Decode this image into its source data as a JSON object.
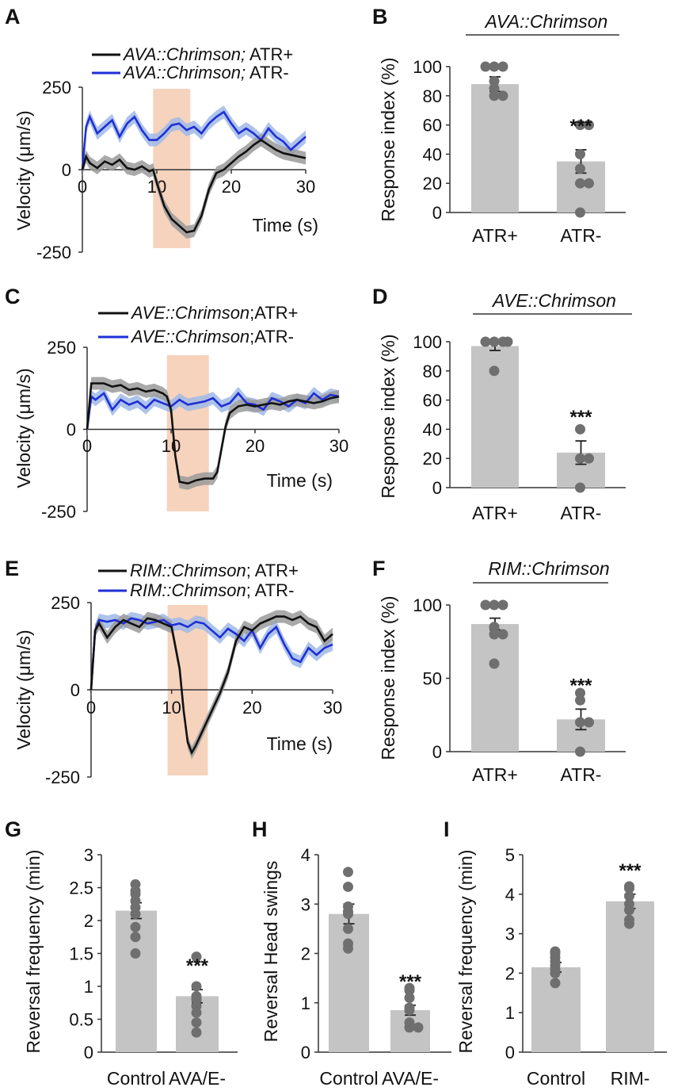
{
  "panel_labels": [
    "A",
    "B",
    "C",
    "D",
    "E",
    "F",
    "G",
    "H",
    "I"
  ],
  "colors": {
    "atr_plus": "#111111",
    "atr_plus_band": "#9a9a9a",
    "atr_minus": "#1f2fd6",
    "atr_minus_band": "#9fb8e6",
    "stim": "#f6d3bd",
    "bar": "#c4c4c4",
    "dot": "#6f6f6f"
  },
  "chart_data": [
    {
      "id": "A",
      "type": "line",
      "xlabel": "Time (s)",
      "ylabel": "Velocity (μm/s)",
      "xlim": [
        0,
        30
      ],
      "ylim": [
        -250,
        250
      ],
      "xticks": [
        "0",
        "10",
        "20",
        "30"
      ],
      "yticks": [
        "250",
        "0",
        "-250"
      ],
      "stim_window": [
        9.5,
        14.5
      ],
      "legend": [
        {
          "gene": "AVA::Chrimson;",
          "cond": " ATR+"
        },
        {
          "gene": "AVA::Chrimson;",
          "cond": " ATR-"
        }
      ],
      "series": [
        {
          "name": "ATR+",
          "x": [
            0,
            0.5,
            1,
            2,
            3,
            4,
            5,
            6,
            7,
            8,
            9,
            9.5,
            10,
            11,
            12,
            13,
            14,
            15,
            16,
            17,
            18,
            19,
            20,
            21,
            22,
            23,
            24,
            25,
            26,
            27,
            28,
            29,
            30
          ],
          "y": [
            0,
            40,
            20,
            5,
            25,
            15,
            30,
            5,
            0,
            10,
            -5,
            0,
            -40,
            -110,
            -150,
            -170,
            -190,
            -185,
            -140,
            -60,
            -10,
            0,
            20,
            40,
            55,
            75,
            90,
            75,
            60,
            50,
            45,
            40,
            35
          ]
        },
        {
          "name": "ATR-",
          "x": [
            0,
            0.5,
            1,
            2,
            3,
            4,
            5,
            6,
            7,
            8,
            9,
            10,
            11,
            12,
            13,
            14,
            15,
            16,
            17,
            18,
            19,
            20,
            21,
            22,
            23,
            24,
            25,
            26,
            27,
            28,
            29,
            30
          ],
          "y": [
            0,
            130,
            160,
            110,
            130,
            150,
            100,
            140,
            160,
            120,
            90,
            90,
            110,
            135,
            140,
            120,
            130,
            110,
            140,
            160,
            175,
            140,
            110,
            125,
            110,
            90,
            125,
            100,
            85,
            60,
            80,
            100
          ]
        }
      ]
    },
    {
      "id": "B",
      "type": "bar",
      "title": "AVA::Chrimson",
      "ylabel": "Response index (%)",
      "ylim": [
        0,
        100
      ],
      "yticks": [
        "0",
        "20",
        "40",
        "60",
        "80",
        "100"
      ],
      "categories": [
        "ATR+",
        "ATR-"
      ],
      "values": [
        88,
        35
      ],
      "errors": [
        5,
        8
      ],
      "points": [
        [
          100,
          100,
          100,
          90,
          80,
          80,
          85
        ],
        [
          60,
          60,
          40,
          30,
          20,
          20,
          0
        ]
      ],
      "significance": [
        null,
        "***"
      ]
    },
    {
      "id": "C",
      "type": "line",
      "xlabel": "Time (s)",
      "ylabel": "Velocity (μm/s)",
      "xlim": [
        0,
        30
      ],
      "ylim": [
        -250,
        250
      ],
      "xticks": [
        "0",
        "10",
        "20",
        "30"
      ],
      "yticks": [
        "250",
        "0",
        "-250"
      ],
      "stim_window": [
        9.5,
        14.5
      ],
      "legend": [
        {
          "gene": "AVE::Chrimson",
          "cond": ";ATR+"
        },
        {
          "gene": "AVE::Chrimson",
          "cond": ";ATR-"
        }
      ],
      "series": [
        {
          "name": "ATR+",
          "x": [
            0,
            0.5,
            1,
            2,
            3,
            4,
            5,
            6,
            7,
            8,
            9,
            9.5,
            10,
            10.5,
            11,
            12,
            13,
            14,
            15,
            15.5,
            16,
            16.5,
            17,
            18,
            19,
            20,
            21,
            22,
            23,
            24,
            25,
            26,
            27,
            28,
            29,
            30
          ],
          "y": [
            0,
            140,
            140,
            140,
            130,
            135,
            120,
            125,
            115,
            120,
            110,
            100,
            60,
            -80,
            -160,
            -165,
            -155,
            -150,
            -150,
            -130,
            -60,
            10,
            50,
            70,
            75,
            70,
            75,
            80,
            75,
            85,
            90,
            85,
            80,
            85,
            95,
            100
          ]
        },
        {
          "name": "ATR-",
          "x": [
            0,
            0.5,
            1,
            2,
            3,
            4,
            5,
            6,
            7,
            8,
            9,
            10,
            11,
            12,
            13,
            14,
            15,
            16,
            17,
            18,
            19,
            20,
            21,
            22,
            23,
            24,
            25,
            26,
            27,
            28,
            29,
            30
          ],
          "y": [
            0,
            100,
            90,
            110,
            60,
            90,
            75,
            85,
            65,
            90,
            80,
            70,
            90,
            75,
            80,
            85,
            95,
            70,
            80,
            110,
            80,
            75,
            60,
            95,
            85,
            70,
            90,
            80,
            110,
            90,
            105,
            100
          ]
        }
      ]
    },
    {
      "id": "D",
      "type": "bar",
      "title": "AVE::Chrimson",
      "ylabel": "Response index (%)",
      "ylim": [
        0,
        100
      ],
      "yticks": [
        "0",
        "20",
        "40",
        "60",
        "80",
        "100"
      ],
      "categories": [
        "ATR+",
        "ATR-"
      ],
      "values": [
        97,
        24
      ],
      "errors": [
        3,
        8
      ],
      "points": [
        [
          100,
          100,
          100,
          100,
          80
        ],
        [
          40,
          20,
          20,
          0
        ]
      ],
      "significance": [
        null,
        "***"
      ]
    },
    {
      "id": "E",
      "type": "line",
      "xlabel": "Time (s)",
      "ylabel": "Velocity (μm/s)",
      "xlim": [
        0,
        30
      ],
      "ylim": [
        -250,
        250
      ],
      "xticks": [
        "0",
        "10",
        "20",
        "30"
      ],
      "yticks": [
        "250",
        "0",
        "-250"
      ],
      "stim_window": [
        9.5,
        14.5
      ],
      "legend": [
        {
          "gene": "RIM::Chrimson",
          "cond": "; ATR+"
        },
        {
          "gene": "RIM::Chrimson",
          "cond": "; ATR-"
        }
      ],
      "series": [
        {
          "name": "ATR+",
          "x": [
            0,
            0.5,
            1,
            2,
            3,
            4,
            5,
            6,
            7,
            8,
            9,
            10,
            11,
            11.5,
            12,
            12.5,
            13,
            14,
            15,
            16,
            17,
            18,
            19,
            20,
            21,
            22,
            23,
            24,
            25,
            26,
            27,
            28,
            29,
            30
          ],
          "y": [
            0,
            170,
            190,
            150,
            180,
            200,
            190,
            180,
            205,
            200,
            190,
            180,
            60,
            -60,
            -150,
            -180,
            -160,
            -110,
            -60,
            -10,
            50,
            140,
            180,
            170,
            190,
            200,
            210,
            210,
            200,
            210,
            190,
            180,
            140,
            160
          ]
        },
        {
          "name": "ATR-",
          "x": [
            0,
            0.5,
            1,
            2,
            3,
            4,
            5,
            6,
            7,
            8,
            9,
            10,
            11,
            12,
            13,
            14,
            15,
            16,
            17,
            18,
            19,
            20,
            21,
            22,
            23,
            24,
            25,
            26,
            27,
            28,
            29,
            30
          ],
          "y": [
            0,
            170,
            200,
            195,
            200,
            190,
            205,
            200,
            190,
            195,
            200,
            185,
            190,
            180,
            195,
            190,
            170,
            150,
            175,
            160,
            140,
            170,
            120,
            160,
            180,
            130,
            90,
            80,
            120,
            100,
            120,
            130
          ]
        }
      ]
    },
    {
      "id": "F",
      "type": "bar",
      "title": "RIM::Chrimson",
      "ylabel": "Response index (%)",
      "ylim": [
        0,
        100
      ],
      "yticks": [
        "0",
        "50",
        "100"
      ],
      "categories": [
        "ATR+",
        "ATR-"
      ],
      "values": [
        87,
        22
      ],
      "errors": [
        4,
        7
      ],
      "points": [
        [
          100,
          100,
          100,
          85,
          80,
          80,
          60
        ],
        [
          40,
          35,
          20,
          20,
          0
        ]
      ],
      "significance": [
        null,
        "***"
      ]
    },
    {
      "id": "G",
      "type": "bar",
      "ylabel": "Reversal frequency (min)",
      "ylim": [
        0,
        3
      ],
      "yticks": [
        "0",
        "0.5",
        "1",
        "1.5",
        "2",
        "2.5",
        "3"
      ],
      "categories": [
        "Control",
        "AVA/E-"
      ],
      "values": [
        2.15,
        0.85
      ],
      "errors": [
        0.12,
        0.1
      ],
      "points": [
        [
          2.55,
          2.45,
          2.4,
          2.3,
          2.2,
          2.1,
          1.9,
          1.75,
          1.5
        ],
        [
          1.45,
          1.0,
          0.85,
          0.8,
          0.7,
          0.6,
          0.45,
          0.3
        ]
      ],
      "significance": [
        null,
        "***"
      ]
    },
    {
      "id": "H",
      "type": "bar",
      "ylabel": "Reversal Head swings",
      "ylim": [
        0,
        4
      ],
      "yticks": [
        "0",
        "1",
        "2",
        "3",
        "4"
      ],
      "categories": [
        "Control",
        "AVA/E-"
      ],
      "values": [
        2.8,
        0.85
      ],
      "errors": [
        0.2,
        0.1
      ],
      "points": [
        [
          3.65,
          3.35,
          2.95,
          2.85,
          2.8,
          2.5,
          2.2,
          2.1
        ],
        [
          1.3,
          1.25,
          1.1,
          0.9,
          0.85,
          0.6,
          0.5,
          0.5
        ]
      ],
      "significance": [
        null,
        "***"
      ]
    },
    {
      "id": "I",
      "type": "bar",
      "ylabel": "Reversal frequency (min)",
      "ylim": [
        0,
        5
      ],
      "yticks": [
        "0",
        "1",
        "2",
        "3",
        "4",
        "5"
      ],
      "categories": [
        "Control",
        "RIM-"
      ],
      "values": [
        2.15,
        3.82
      ],
      "errors": [
        0.12,
        0.18
      ],
      "points": [
        [
          2.55,
          2.5,
          2.4,
          2.3,
          2.2,
          2.1,
          2.0,
          1.75
        ],
        [
          4.2,
          4.15,
          3.95,
          3.75,
          3.6,
          3.35,
          3.25
        ]
      ],
      "significance": [
        null,
        "***"
      ]
    }
  ]
}
